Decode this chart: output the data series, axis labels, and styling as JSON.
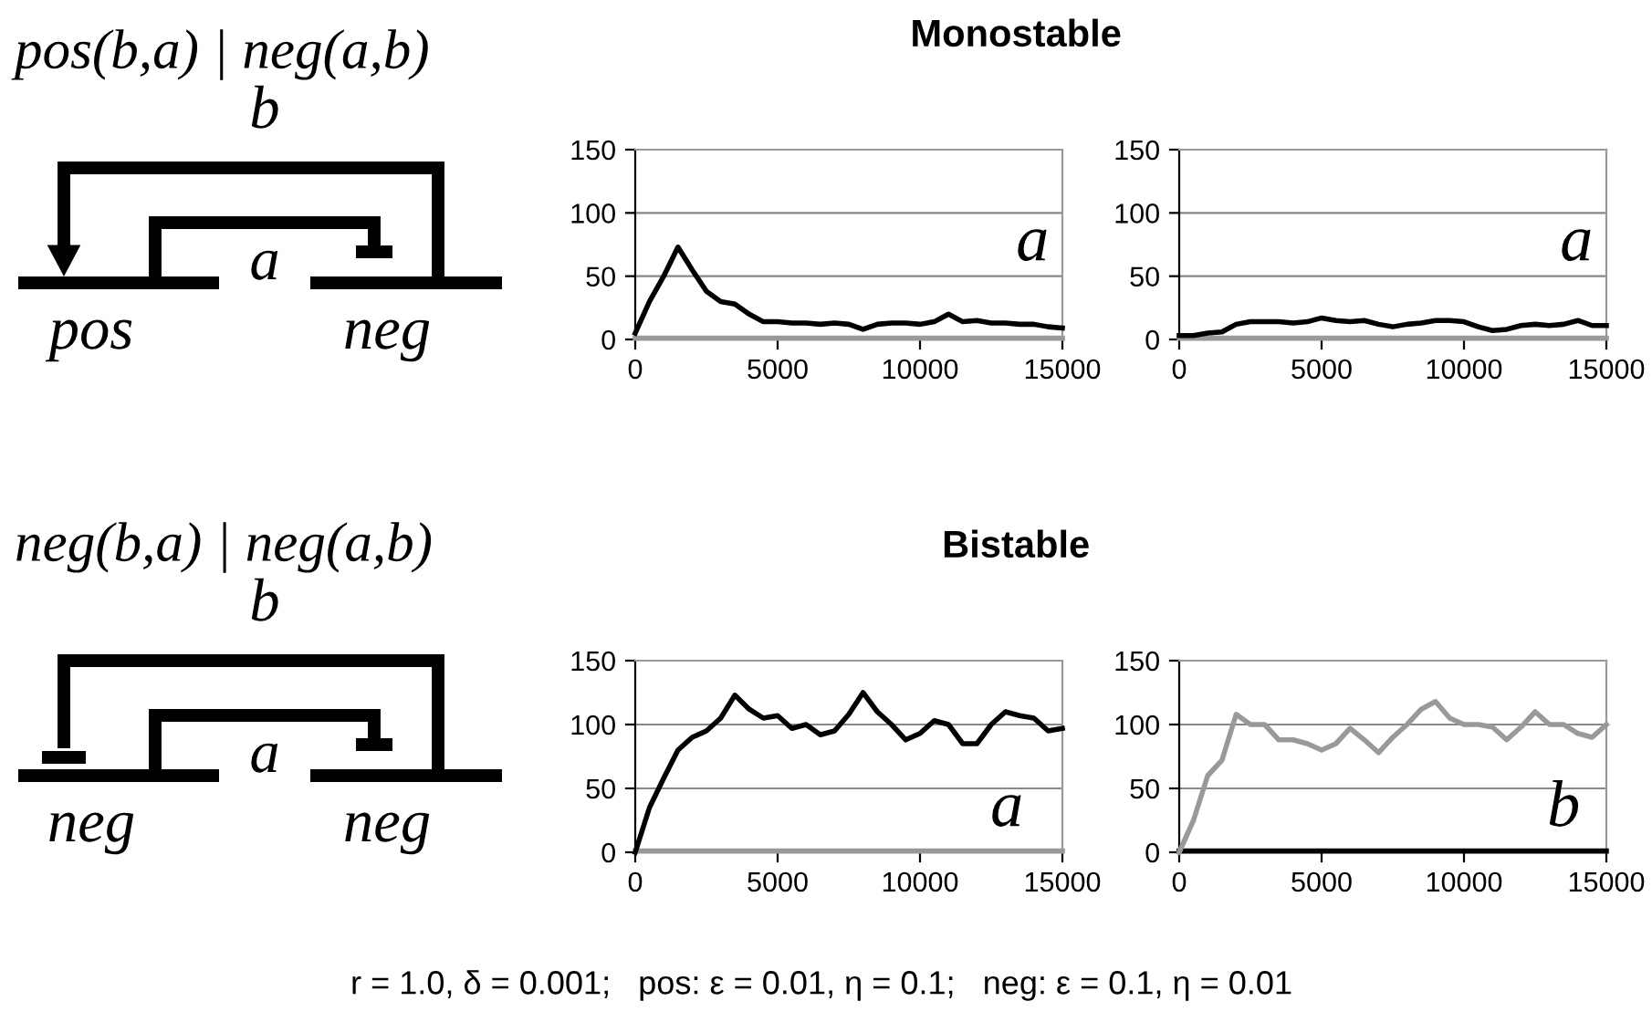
{
  "chart_data": [
    {
      "type": "line",
      "title": "Monostable",
      "annotations": [
        "pos(b,a) | neg(a,b)",
        "b",
        "a",
        "pos",
        "neg",
        "a"
      ],
      "x": [
        0,
        500,
        1000,
        1500,
        2000,
        2500,
        3000,
        3500,
        4000,
        4500,
        5000,
        5500,
        6000,
        6500,
        7000,
        7500,
        8000,
        8500,
        9000,
        9500,
        10000,
        10500,
        11000,
        11500,
        12000,
        12500,
        13000,
        13500,
        14000,
        14500,
        15000
      ],
      "series": [
        {
          "color": "#999999",
          "values": [
            1,
            1,
            1,
            1,
            1,
            1,
            1,
            1,
            1,
            1,
            1,
            1,
            1,
            1,
            1,
            1,
            1,
            1,
            1,
            1,
            1,
            1,
            1,
            1,
            1,
            1,
            1,
            1,
            1,
            1,
            1
          ]
        },
        {
          "color": "#000000",
          "values": [
            5,
            30,
            50,
            73,
            55,
            38,
            30,
            28,
            20,
            14,
            14,
            13,
            13,
            12,
            13,
            12,
            8,
            12,
            13,
            13,
            12,
            14,
            20,
            14,
            15,
            13,
            13,
            12,
            12,
            10,
            9
          ]
        }
      ],
      "xlim": [
        0,
        15000
      ],
      "ylim": [
        0,
        150
      ],
      "xticks": [
        0,
        5000,
        10000,
        15000
      ],
      "yticks": [
        0,
        50,
        100,
        150
      ],
      "grid": "y"
    },
    {
      "type": "line",
      "annotations": [
        "a"
      ],
      "x": [
        0,
        500,
        1000,
        1500,
        2000,
        2500,
        3000,
        3500,
        4000,
        4500,
        5000,
        5500,
        6000,
        6500,
        7000,
        7500,
        8000,
        8500,
        9000,
        9500,
        10000,
        10500,
        11000,
        11500,
        12000,
        12500,
        13000,
        13500,
        14000,
        14500,
        15000
      ],
      "series": [
        {
          "color": "#999999",
          "values": [
            1,
            1,
            1,
            1,
            1,
            1,
            1,
            1,
            1,
            1,
            1,
            1,
            1,
            1,
            1,
            1,
            1,
            1,
            1,
            1,
            1,
            1,
            1,
            1,
            1,
            1,
            1,
            1,
            1,
            1,
            1
          ]
        },
        {
          "color": "#000000",
          "values": [
            3,
            3,
            5,
            6,
            12,
            14,
            14,
            14,
            13,
            14,
            17,
            15,
            14,
            15,
            12,
            10,
            12,
            13,
            15,
            15,
            14,
            10,
            7,
            8,
            11,
            12,
            11,
            12,
            15,
            11,
            11
          ]
        }
      ],
      "xlim": [
        0,
        15000
      ],
      "ylim": [
        0,
        150
      ],
      "xticks": [
        0,
        5000,
        10000,
        15000
      ],
      "yticks": [
        0,
        50,
        100,
        150
      ],
      "grid": "y"
    },
    {
      "type": "line",
      "title": "Bistable",
      "annotations": [
        "neg(b,a) | neg(a,b)",
        "b",
        "a",
        "neg",
        "neg",
        "a"
      ],
      "x": [
        0,
        500,
        1000,
        1500,
        2000,
        2500,
        3000,
        3500,
        4000,
        4500,
        5000,
        5500,
        6000,
        6500,
        7000,
        7500,
        8000,
        8500,
        9000,
        9500,
        10000,
        10500,
        11000,
        11500,
        12000,
        12500,
        13000,
        13500,
        14000,
        14500,
        15000
      ],
      "series": [
        {
          "color": "#999999",
          "values": [
            1,
            1,
            1,
            1,
            1,
            1,
            1,
            1,
            1,
            1,
            1,
            1,
            1,
            1,
            1,
            1,
            1,
            1,
            1,
            1,
            1,
            1,
            1,
            1,
            1,
            1,
            1,
            1,
            1,
            1,
            1
          ]
        },
        {
          "color": "#000000",
          "values": [
            0,
            35,
            58,
            80,
            90,
            95,
            105,
            123,
            112,
            105,
            107,
            97,
            100,
            92,
            95,
            108,
            125,
            110,
            100,
            88,
            93,
            103,
            100,
            85,
            85,
            100,
            110,
            107,
            105,
            95,
            97
          ]
        }
      ],
      "xlim": [
        0,
        15000
      ],
      "ylim": [
        0,
        150
      ],
      "xticks": [
        0,
        5000,
        10000,
        15000
      ],
      "yticks": [
        0,
        50,
        100,
        150
      ],
      "grid": "y"
    },
    {
      "type": "line",
      "annotations": [
        "b",
        "r = 1.0, δ = 0.001;   pos: ε = 0.01, η = 0.1;   neg: ε = 0.1, η = 0.01"
      ],
      "x": [
        0,
        500,
        1000,
        1500,
        2000,
        2500,
        3000,
        3500,
        4000,
        4500,
        5000,
        5500,
        6000,
        6500,
        7000,
        7500,
        8000,
        8500,
        9000,
        9500,
        10000,
        10500,
        11000,
        11500,
        12000,
        12500,
        13000,
        13500,
        14000,
        14500,
        15000
      ],
      "series": [
        {
          "color": "#000000",
          "values": [
            1,
            1,
            1,
            1,
            1,
            1,
            1,
            1,
            1,
            1,
            1,
            1,
            1,
            1,
            1,
            1,
            1,
            1,
            1,
            1,
            1,
            1,
            1,
            1,
            1,
            1,
            1,
            1,
            1,
            1,
            1
          ]
        },
        {
          "color": "#999999",
          "values": [
            0,
            25,
            60,
            72,
            108,
            100,
            100,
            88,
            88,
            85,
            80,
            85,
            97,
            88,
            78,
            90,
            100,
            112,
            118,
            105,
            100,
            100,
            98,
            88,
            98,
            110,
            100,
            100,
            93,
            90,
            100
          ]
        }
      ],
      "xlim": [
        0,
        15000
      ],
      "ylim": [
        0,
        150
      ],
      "xticks": [
        0,
        5000,
        10000,
        15000
      ],
      "yticks": [
        0,
        50,
        100,
        150
      ],
      "grid": "y"
    }
  ]
}
